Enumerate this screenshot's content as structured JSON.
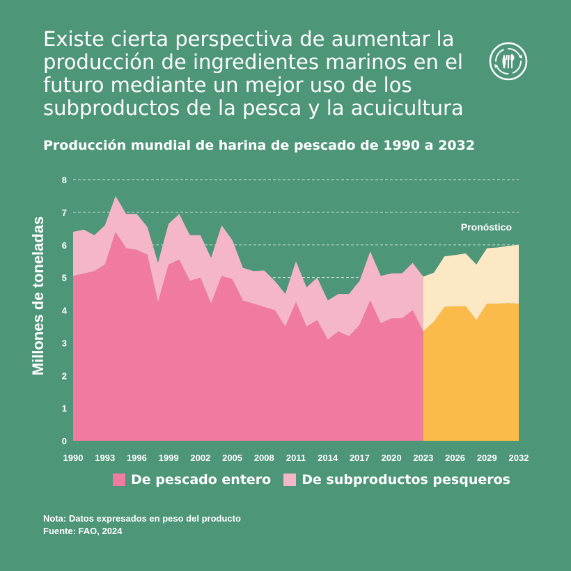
{
  "headline": "Existe cierta perspectiva de aumentar la producción de ingredientes marinos en el futuro mediante un mejor uso de los subproductos de la pesca y la acuicultura",
  "logo_icon": "fish-cycle-icon",
  "notes": {
    "note": "Nota: Datos expresados en peso del producto",
    "source": "Fuente: FAO, 2024"
  },
  "colors": {
    "background": "#4e9678",
    "whole_fish": "#f07b9e",
    "byproducts": "#f5b6c7",
    "whole_fish_forecast": "#fbbb4a",
    "byproducts_forecast": "#fde8c6"
  },
  "chart_data": {
    "type": "area",
    "title": "Producción mundial de harina de pescado de 1990 a 2032",
    "xlabel": "",
    "ylabel": "Millones de toneladas",
    "ylim": [
      0,
      8
    ],
    "yticks": [
      0,
      1,
      2,
      3,
      4,
      5,
      6,
      7,
      8
    ],
    "xlim": [
      1990,
      2032
    ],
    "xticks": [
      1990,
      1993,
      1996,
      1999,
      2002,
      2005,
      2008,
      2011,
      2014,
      2017,
      2020,
      2023,
      2026,
      2029,
      2032
    ],
    "stacked": true,
    "forecast_start": 2023,
    "forecast_label": "Pronóstico",
    "grid": "horizontal dashed",
    "x": [
      1990,
      1991,
      1992,
      1993,
      1994,
      1995,
      1996,
      1997,
      1998,
      1999,
      2000,
      2001,
      2002,
      2003,
      2004,
      2005,
      2006,
      2007,
      2008,
      2009,
      2010,
      2011,
      2012,
      2013,
      2014,
      2015,
      2016,
      2017,
      2018,
      2019,
      2020,
      2021,
      2022,
      2023,
      2024,
      2025,
      2026,
      2027,
      2028,
      2029,
      2030,
      2031,
      2032
    ],
    "series": [
      {
        "name": "De pescado entero",
        "values": [
          5.05,
          5.12,
          5.2,
          5.4,
          6.4,
          5.9,
          5.85,
          5.7,
          4.25,
          5.4,
          5.55,
          4.9,
          5.0,
          4.2,
          5.05,
          4.95,
          4.3,
          4.2,
          4.1,
          4.0,
          3.5,
          4.25,
          3.5,
          3.7,
          3.1,
          3.35,
          3.2,
          3.55,
          4.3,
          3.6,
          3.75,
          3.75,
          4.0,
          3.35,
          3.65,
          4.1,
          4.12,
          4.12,
          3.7,
          4.2,
          4.2,
          4.22,
          4.2
        ]
      },
      {
        "name": "De subproductos pesqueros",
        "values": [
          1.35,
          1.35,
          1.1,
          1.2,
          1.1,
          1.05,
          1.1,
          0.85,
          1.2,
          1.25,
          1.4,
          1.4,
          1.3,
          1.4,
          1.55,
          1.2,
          1.0,
          1.0,
          1.12,
          0.9,
          1.0,
          1.25,
          1.2,
          1.3,
          1.2,
          1.15,
          1.3,
          1.35,
          1.5,
          1.45,
          1.38,
          1.38,
          1.45,
          1.68,
          1.5,
          1.55,
          1.57,
          1.62,
          1.7,
          1.7,
          1.72,
          1.75,
          1.8
        ]
      }
    ],
    "legend": [
      "De pescado entero",
      "De subproductos pesqueros"
    ],
    "legend_position": "bottom"
  }
}
